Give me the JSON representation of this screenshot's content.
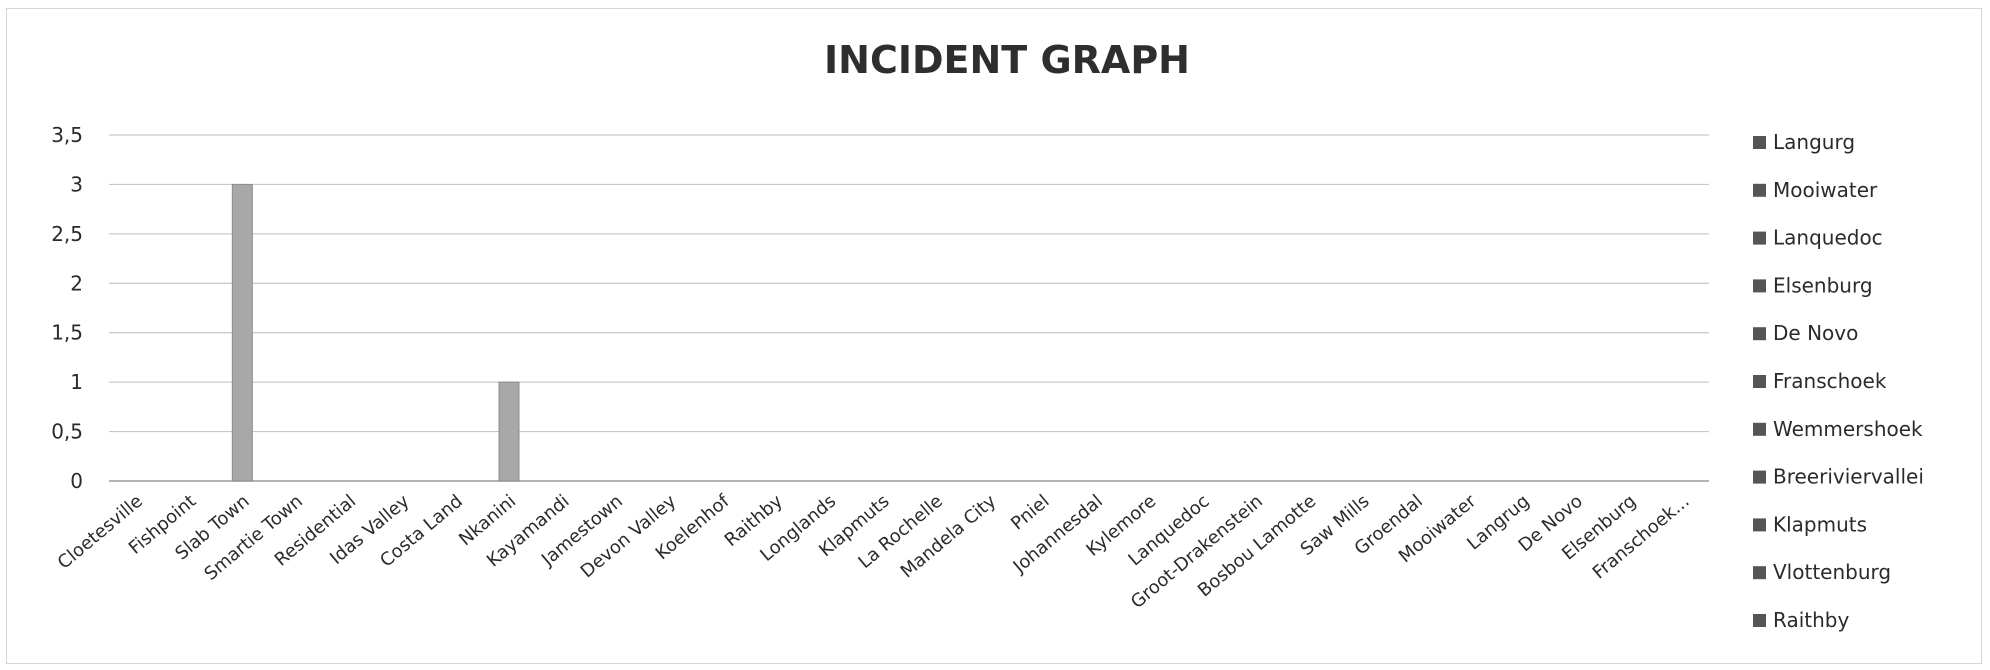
{
  "chart_data": {
    "type": "bar",
    "title": "INCIDENT GRAPH",
    "xlabel": "",
    "ylabel": "",
    "ylim": [
      0,
      3.5
    ],
    "yticks": [
      "0",
      "0,5",
      "1",
      "1,5",
      "2",
      "2,5",
      "3",
      "3,5"
    ],
    "grid": true,
    "legend_position": "right",
    "categories": [
      "Cloetesville",
      "Fishpoint",
      "Slab Town",
      "Smartie Town",
      "Residential",
      "Idas Valley",
      "Costa Land",
      "Nkanini",
      "Kayamandi",
      "Jamestown",
      "Devon Valley",
      "Koelenhof",
      "Raithby",
      "Longlands",
      "Klapmuts",
      "La Rochelle",
      "Mandela City",
      "Pniel",
      "Johannesdal",
      "Kylemore",
      "Lanquedoc",
      "Groot-Drakenstein",
      "Bosbou Lamotte",
      "Saw Mills",
      "Groendal",
      "Mooiwater",
      "Langrug",
      "De Novo",
      "Elsenburg",
      "Franschoek..."
    ],
    "values": [
      0,
      0,
      3,
      0,
      0,
      0,
      0,
      1,
      0,
      0,
      0,
      0,
      0,
      0,
      0,
      0,
      0,
      0,
      0,
      0,
      0,
      0,
      0,
      0,
      0,
      0,
      0,
      0,
      0,
      0
    ],
    "legend": [
      "Langurg",
      "Mooiwater",
      "Lanquedoc",
      "Elsenburg",
      "De Novo",
      "Franschoek",
      "Wemmershoek",
      "Breeriviervallei",
      "Klapmuts",
      "Vlottenburg",
      "Raithby"
    ],
    "colors": {
      "bar": "#a8a8a8",
      "bar_edge": "#8c8c8c",
      "grid": "#c8c8c8",
      "axis": "#9a9a9a",
      "legend_marker": "#555555"
    }
  }
}
